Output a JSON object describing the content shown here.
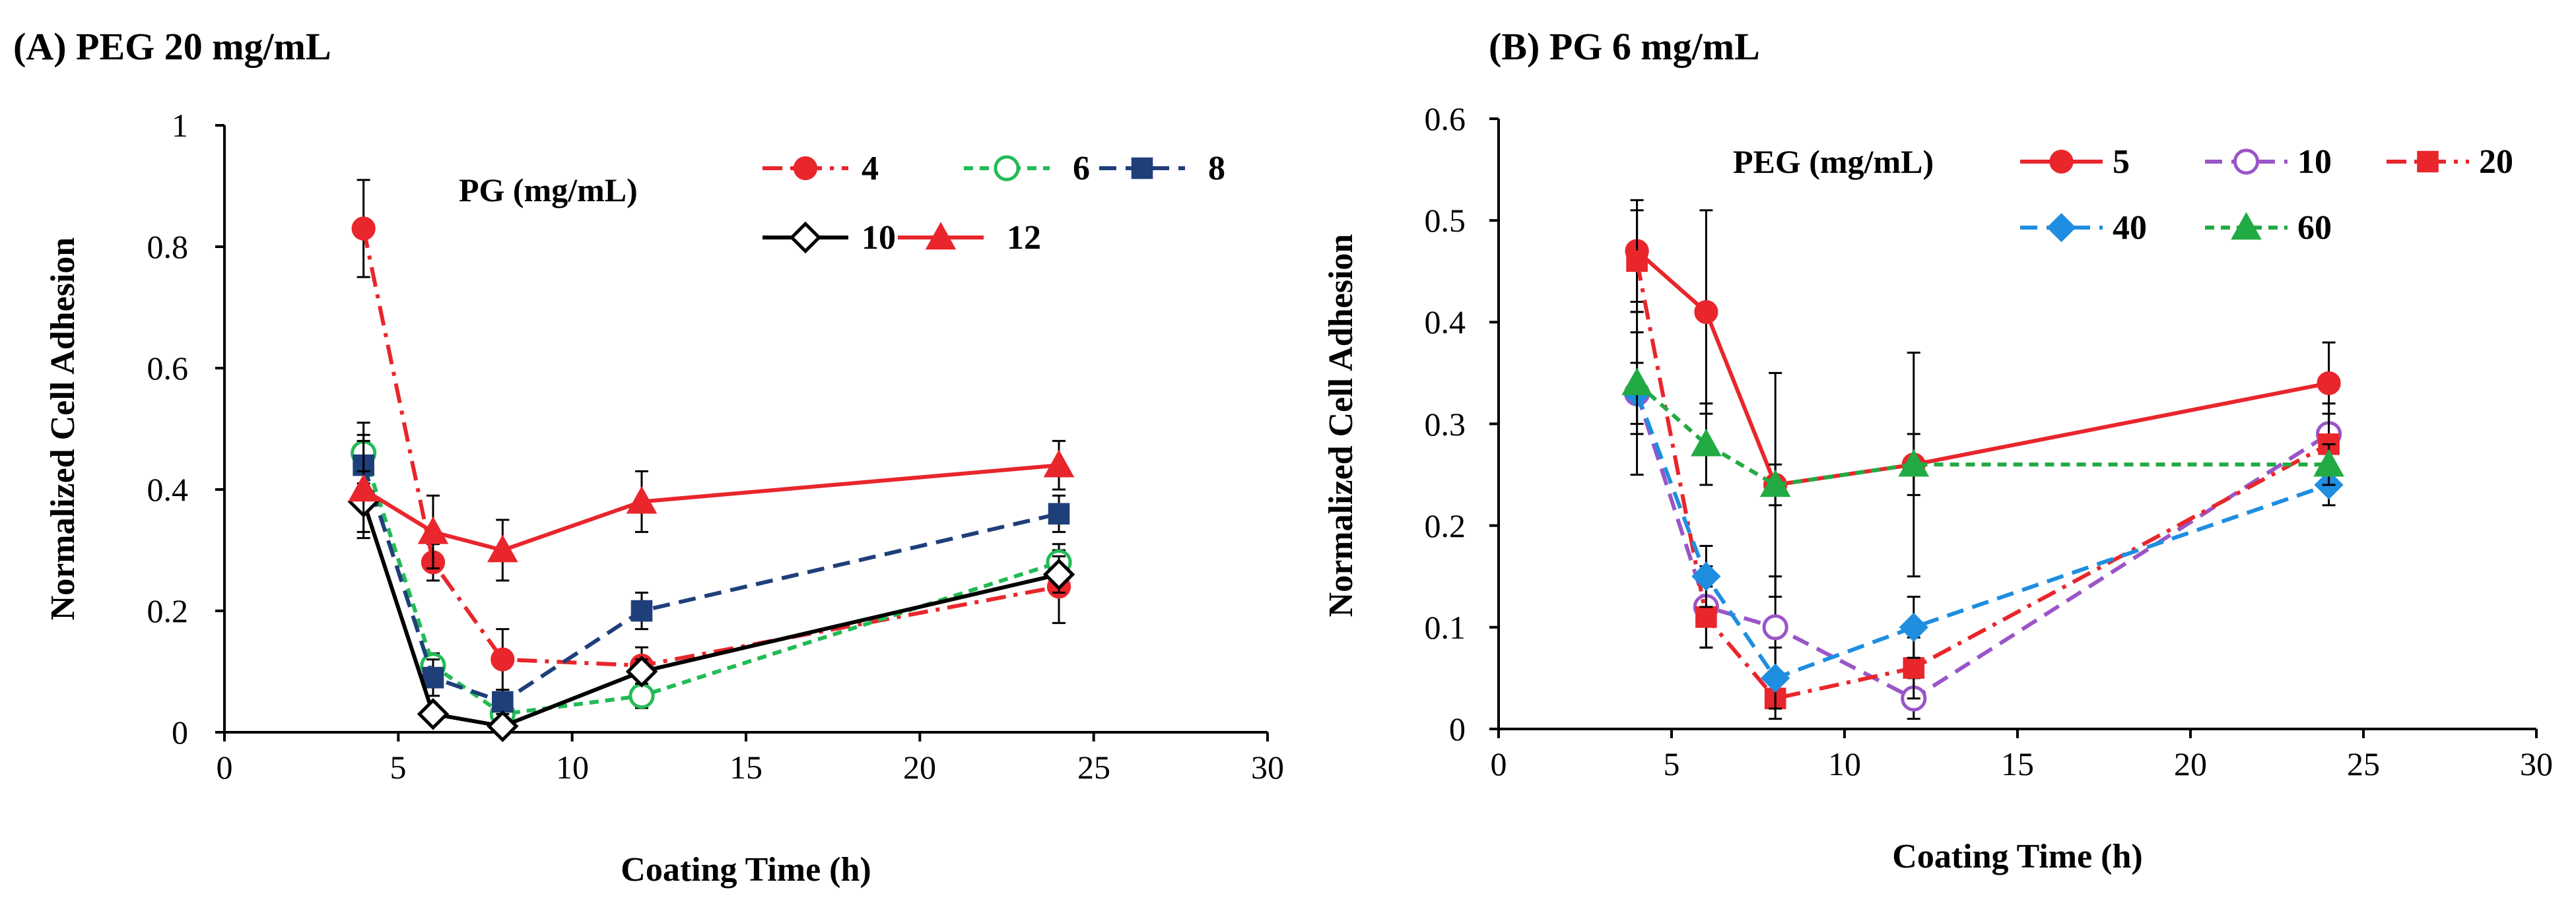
{
  "chart_data": [
    {
      "type": "line",
      "panel_label": "(A) PEG 20 mg/mL",
      "xlabel": "Coating Time (h)",
      "ylabel": "Normalized Cell Adhesion",
      "xlim": [
        0,
        30
      ],
      "ylim": [
        0,
        1
      ],
      "xticks": [
        "0",
        "5",
        "10",
        "15",
        "20",
        "25",
        "30"
      ],
      "yticks": [
        "0",
        "0.2",
        "0.4",
        "0.6",
        "0.8",
        "1"
      ],
      "grid": false,
      "legend_title": "PG (mg/mL)",
      "legend_position": "top-right",
      "series": [
        {
          "name": "4",
          "color": "#e8262c",
          "marker": "circle-filled",
          "dash": "dashdot",
          "x": [
            4,
            6,
            8,
            12,
            24
          ],
          "y": [
            0.83,
            0.28,
            0.12,
            0.11,
            0.24
          ],
          "err": [
            0.08,
            0.03,
            0.05,
            0.03,
            0.06
          ]
        },
        {
          "name": "6",
          "color": "#22bb55",
          "marker": "circle-open",
          "dash": "shortdash",
          "x": [
            4,
            6,
            8,
            12,
            24
          ],
          "y": [
            0.46,
            0.11,
            0.03,
            0.06,
            0.28
          ],
          "err": [
            0.05,
            0.02,
            0.01,
            0.02,
            0.03
          ]
        },
        {
          "name": "8",
          "color": "#1f3f7a",
          "marker": "square-filled",
          "dash": "dash",
          "x": [
            4,
            6,
            8,
            12,
            24
          ],
          "y": [
            0.44,
            0.09,
            0.05,
            0.2,
            0.36
          ],
          "err": [
            0.05,
            0.03,
            0.02,
            0.03,
            0.03
          ]
        },
        {
          "name": "10",
          "color": "#000000",
          "marker": "diamond-open",
          "dash": "solid",
          "x": [
            4,
            6,
            8,
            12,
            24
          ],
          "y": [
            0.38,
            0.03,
            0.01,
            0.1,
            0.26
          ],
          "err": [
            0.05,
            0.01,
            0.01,
            0.02,
            0.03
          ]
        },
        {
          "name": "12",
          "color": "#e8262c",
          "marker": "triangle-filled",
          "dash": "solid",
          "x": [
            4,
            6,
            8,
            12,
            24
          ],
          "y": [
            0.4,
            0.33,
            0.3,
            0.38,
            0.44
          ],
          "err": [
            0.08,
            0.06,
            0.05,
            0.05,
            0.04
          ]
        }
      ]
    },
    {
      "type": "line",
      "panel_label": "(B)  PG 6 mg/mL",
      "xlabel": "Coating Time (h)",
      "ylabel": "Normalized Cell Adhesion",
      "xlim": [
        0,
        30
      ],
      "ylim": [
        0,
        0.6
      ],
      "xticks": [
        "0",
        "5",
        "10",
        "15",
        "20",
        "25",
        "30"
      ],
      "yticks": [
        "0",
        "0.1",
        "0.2",
        "0.3",
        "0.4",
        "0.5",
        "0.6"
      ],
      "grid": false,
      "legend_title": "PEG (mg/mL)",
      "legend_position": "top-right",
      "series": [
        {
          "name": "5",
          "color": "#e8262c",
          "marker": "circle-filled",
          "dash": "solid",
          "x": [
            4,
            6,
            8,
            12,
            24
          ],
          "y": [
            0.47,
            0.41,
            0.24,
            0.26,
            0.34
          ],
          "err": [
            0.05,
            0.1,
            0.11,
            0.11,
            0.04
          ]
        },
        {
          "name": "10",
          "color": "#9a55c7",
          "marker": "circle-open",
          "dash": "dash",
          "x": [
            4,
            6,
            8,
            12,
            24
          ],
          "y": [
            0.33,
            0.12,
            0.1,
            0.03,
            0.29
          ],
          "err": [
            0.08,
            0.04,
            0.05,
            0.02,
            0.03
          ]
        },
        {
          "name": "20",
          "color": "#e8262c",
          "marker": "square-filled",
          "dash": "dashdot",
          "x": [
            4,
            6,
            8,
            12,
            24
          ],
          "y": [
            0.46,
            0.11,
            0.03,
            0.06,
            0.28
          ],
          "err": [
            0.05,
            0.03,
            0.02,
            0.03,
            0.03
          ]
        },
        {
          "name": "40",
          "color": "#1f8ee0",
          "marker": "diamond-filled",
          "dash": "dash",
          "x": [
            4,
            6,
            8,
            12,
            24
          ],
          "y": [
            0.33,
            0.15,
            0.05,
            0.1,
            0.24
          ],
          "err": [
            0.03,
            0.03,
            0.03,
            0.03,
            0.02
          ]
        },
        {
          "name": "60",
          "color": "#22aa44",
          "marker": "triangle-filled",
          "dash": "shortdash",
          "x": [
            4,
            6,
            8,
            12,
            24
          ],
          "y": [
            0.34,
            0.28,
            0.24,
            0.26,
            0.26
          ],
          "err": [
            0.05,
            0.04,
            0.02,
            0.03,
            0.02
          ]
        }
      ]
    }
  ]
}
